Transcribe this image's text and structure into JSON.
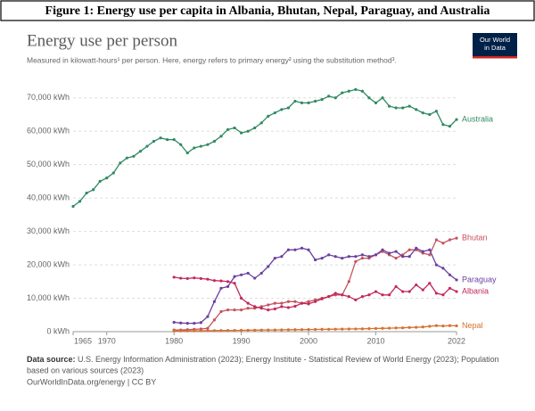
{
  "chart_data": {
    "type": "line",
    "figure_title": "Figure 1: Energy use per capita in Albania, Bhutan, Nepal, Paraguay, and Australia",
    "title": "Energy use per person",
    "subtitle": "Measured in kilowatt-hours¹ per person. Here, energy refers to primary energy² using the substitution method³.",
    "logo": [
      "Our World",
      "in Data"
    ],
    "source_label": "Data source:",
    "source_lines": [
      "U.S. Energy Information Administration (2023); Energy Institute - Statistical Review of World Energy (2023); Population",
      "based on various sources (2023)"
    ],
    "url_note": "OurWorldInData.org/energy | CC BY",
    "x": [
      1965,
      1966,
      1967,
      1968,
      1969,
      1970,
      1971,
      1972,
      1973,
      1974,
      1975,
      1976,
      1977,
      1978,
      1979,
      1980,
      1981,
      1982,
      1983,
      1984,
      1985,
      1986,
      1987,
      1988,
      1989,
      1990,
      1991,
      1992,
      1993,
      1994,
      1995,
      1996,
      1997,
      1998,
      1999,
      2000,
      2001,
      2002,
      2003,
      2004,
      2005,
      2006,
      2007,
      2008,
      2009,
      2010,
      2011,
      2012,
      2013,
      2014,
      2015,
      2016,
      2017,
      2018,
      2019,
      2020,
      2021,
      2022
    ],
    "xlim": [
      1965,
      2022
    ],
    "xticks": [
      1965,
      1970,
      1980,
      1990,
      2000,
      2010,
      2022
    ],
    "ylim": [
      0,
      75000
    ],
    "yticks": [
      {
        "value": 0,
        "label": "0 kWh"
      },
      {
        "value": 10000,
        "label": "10,000 kWh"
      },
      {
        "value": 20000,
        "label": "20,000 kWh"
      },
      {
        "value": 30000,
        "label": "30,000 kWh"
      },
      {
        "value": 40000,
        "label": "40,000 kWh"
      },
      {
        "value": 50000,
        "label": "50,000 kWh"
      },
      {
        "value": 60000,
        "label": "60,000 kWh"
      },
      {
        "value": 70000,
        "label": "70,000 kWh"
      }
    ],
    "grid": true,
    "series": [
      {
        "name": "Australia",
        "color": "#2f8a63",
        "values": [
          37500,
          39000,
          41500,
          42500,
          45000,
          46000,
          47500,
          50500,
          52000,
          52500,
          54000,
          55500,
          57000,
          58000,
          57500,
          57500,
          56000,
          53500,
          55000,
          55500,
          56000,
          57000,
          58500,
          60500,
          61000,
          59500,
          60000,
          61000,
          62500,
          64500,
          65500,
          66500,
          67000,
          69000,
          68500,
          68500,
          69000,
          69500,
          70500,
          70000,
          71500,
          72000,
          72500,
          72000,
          70000,
          68500,
          70000,
          67500,
          67000,
          67000,
          67500,
          66500,
          65500,
          65000,
          66000,
          62000,
          61500,
          63500
        ]
      },
      {
        "name": "Bhutan",
        "color": "#c5525e",
        "values": [
          null,
          null,
          null,
          null,
          null,
          null,
          null,
          null,
          null,
          null,
          null,
          null,
          null,
          null,
          null,
          500,
          500,
          600,
          700,
          800,
          1000,
          3500,
          6000,
          6500,
          6500,
          6500,
          7000,
          7000,
          7500,
          8000,
          8500,
          8500,
          9000,
          9000,
          8500,
          9000,
          9500,
          10000,
          10500,
          11000,
          11000,
          15000,
          21000,
          22000,
          22000,
          23000,
          24000,
          23000,
          22000,
          23000,
          24500,
          24500,
          23500,
          23000,
          27500,
          26500,
          27500,
          28000
        ]
      },
      {
        "name": "Paraguay",
        "color": "#6b3fa0",
        "values": [
          null,
          null,
          null,
          null,
          null,
          null,
          null,
          null,
          null,
          null,
          null,
          null,
          null,
          null,
          null,
          2800,
          2600,
          2500,
          2500,
          2700,
          4500,
          9000,
          13000,
          13500,
          16500,
          17000,
          17500,
          16000,
          17500,
          19500,
          22000,
          22500,
          24500,
          24500,
          25000,
          24500,
          21500,
          22000,
          23000,
          22500,
          22000,
          22500,
          22500,
          23000,
          22500,
          23000,
          24500,
          23500,
          24000,
          22500,
          22500,
          25000,
          24000,
          24500,
          20000,
          19000,
          17000,
          15500
        ]
      },
      {
        "name": "Albania",
        "color": "#c2285c",
        "values": [
          null,
          null,
          null,
          null,
          null,
          null,
          null,
          null,
          null,
          null,
          null,
          null,
          null,
          null,
          null,
          16300,
          16000,
          15900,
          16100,
          15900,
          15700,
          15300,
          15200,
          15000,
          14500,
          10000,
          8500,
          7500,
          7000,
          6500,
          6800,
          7500,
          7200,
          7600,
          8500,
          8300,
          9000,
          9800,
          10500,
          11500,
          11000,
          10500,
          9500,
          10500,
          11000,
          12000,
          11000,
          11000,
          13500,
          12000,
          12000,
          14000,
          12500,
          14500,
          11500,
          11000,
          13000,
          12000
        ]
      },
      {
        "name": "Nepal",
        "color": "#d8702c",
        "values": [
          null,
          null,
          null,
          null,
          null,
          null,
          null,
          null,
          null,
          null,
          null,
          null,
          null,
          null,
          null,
          200,
          220,
          240,
          260,
          280,
          300,
          320,
          340,
          360,
          380,
          400,
          420,
          450,
          480,
          500,
          520,
          550,
          580,
          600,
          620,
          650,
          680,
          700,
          720,
          750,
          780,
          800,
          820,
          850,
          900,
          950,
          1000,
          1050,
          1100,
          1150,
          1250,
          1300,
          1400,
          1600,
          1800,
          1700,
          1800,
          1750
        ]
      }
    ]
  }
}
